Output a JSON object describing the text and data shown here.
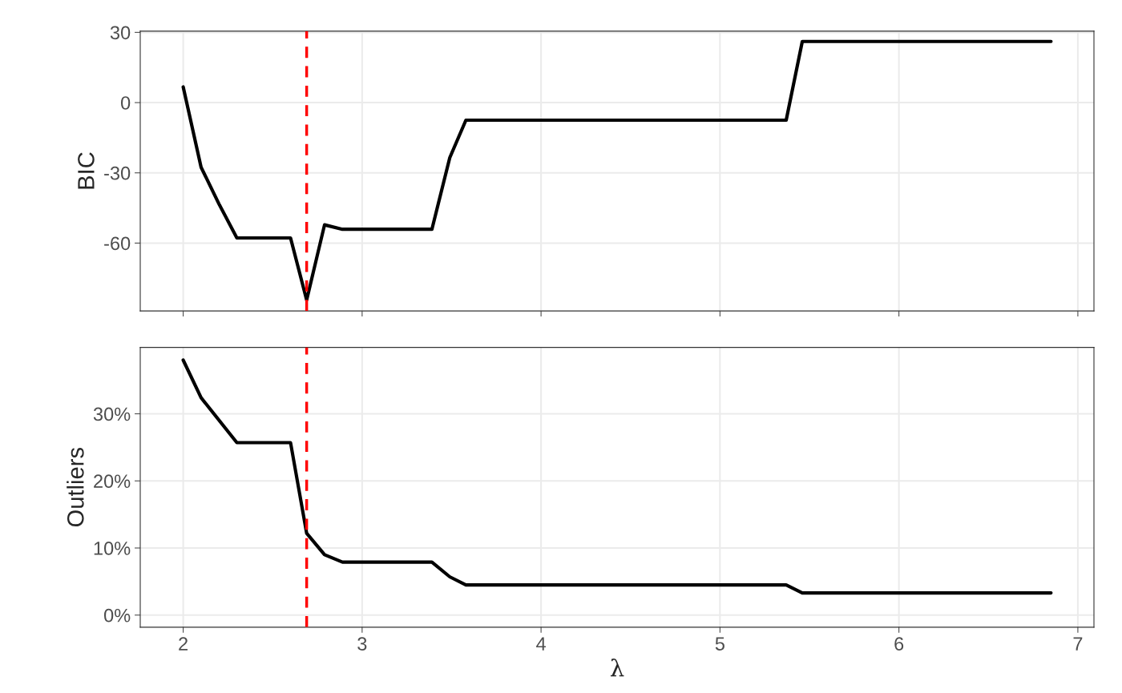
{
  "chart_data": [
    {
      "type": "line",
      "ylabel": "BIC",
      "x": [
        2.0,
        2.1,
        2.2,
        2.3,
        2.6,
        2.69,
        2.79,
        2.89,
        3.39,
        3.49,
        3.58,
        5.37,
        5.46,
        6.85
      ],
      "series": [
        {
          "color": "#000000",
          "values": [
            6.7,
            -27.6,
            -43.3,
            -57.8,
            -57.8,
            -84.3,
            -52.2,
            -54.1,
            -54.1,
            -23.5,
            -7.5,
            -7.5,
            26.1,
            26.1
          ]
        }
      ],
      "xlim": [
        1.76,
        7.09
      ],
      "xticks": [
        2,
        3,
        4,
        5,
        6,
        7
      ],
      "ylim": [
        -89,
        30.5
      ],
      "yticks": [
        -60,
        -30,
        0,
        30
      ],
      "tick_labels": "y",
      "grid": true,
      "ref_lines": [
        {
          "axis": "x",
          "value": 2.69,
          "color": "#ff0000",
          "line_style": "dashed"
        }
      ]
    },
    {
      "type": "line",
      "ylabel": "Outliers",
      "xlabel": "λ",
      "x": [
        2.0,
        2.1,
        2.3,
        2.6,
        2.69,
        2.79,
        2.89,
        3.39,
        3.49,
        3.58,
        5.37,
        5.46,
        6.85
      ],
      "series": [
        {
          "color": "#000000",
          "values": [
            38.0,
            32.4,
            25.7,
            25.7,
            12.2,
            9.0,
            7.9,
            7.9,
            5.7,
            4.5,
            4.5,
            3.3,
            3.3
          ]
        }
      ],
      "xlim": [
        1.76,
        7.09
      ],
      "xticks": [
        2,
        3,
        4,
        5,
        6,
        7
      ],
      "ylim": [
        -1.8,
        39.9
      ],
      "yticks": [
        {
          "value": 0,
          "label": "0%"
        },
        {
          "value": 10,
          "label": "10%"
        },
        {
          "value": 20,
          "label": "20%"
        },
        {
          "value": 30,
          "label": "30%"
        }
      ],
      "grid": true,
      "ref_lines": [
        {
          "axis": "x",
          "value": 2.69,
          "color": "#ff0000",
          "line_style": "dashed"
        }
      ]
    }
  ]
}
